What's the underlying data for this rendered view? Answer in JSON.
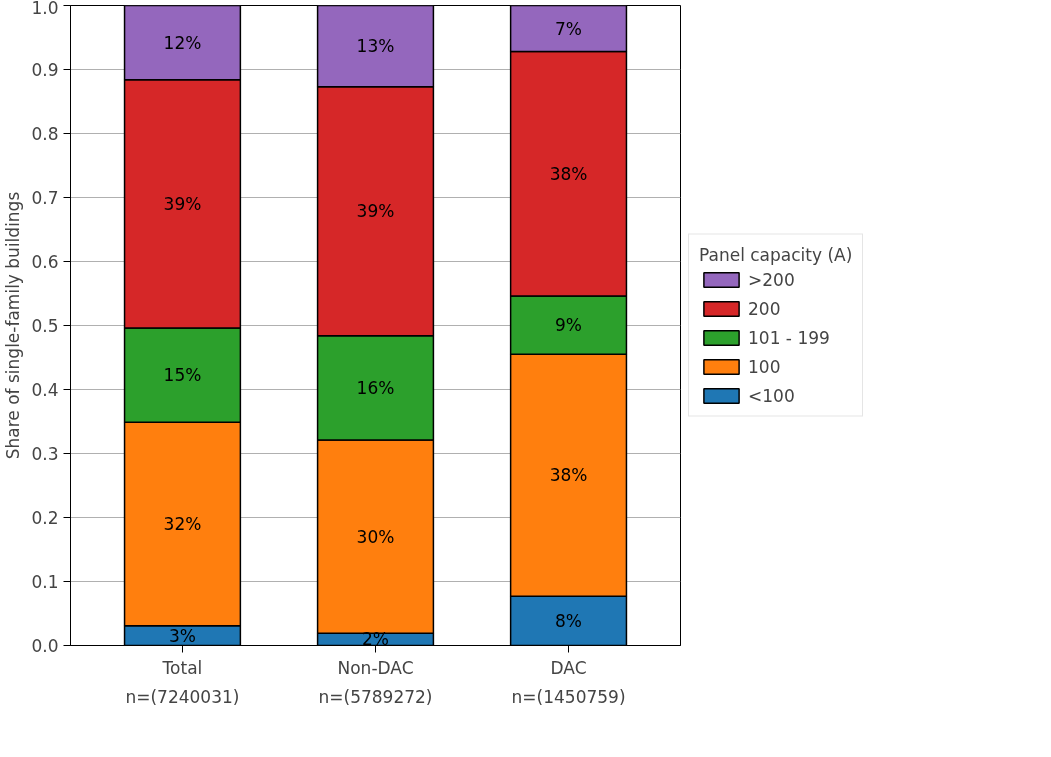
{
  "chart_data": {
    "type": "bar",
    "stacked": true,
    "ylabel": "Share of single-family buildings",
    "legend_title": "Panel capacity (A)",
    "legend": "right",
    "grid": "y",
    "categories": [
      "Total\nn=(7240031)",
      "Non-DAC\nn=(5789272)",
      "DAC\nn=(1450759)"
    ],
    "ylim": [
      0,
      1
    ],
    "yticks": [
      {
        "value": 0,
        "label": "0.0"
      },
      0.1,
      0.2,
      0.3,
      0.4,
      0.5,
      0.6,
      0.7,
      0.8,
      0.9,
      {
        "value": 1,
        "label": "1.0"
      }
    ],
    "series": [
      {
        "name": "<100",
        "color": "#1f77b4",
        "values": [
          0.031,
          0.019,
          0.077
        ],
        "value_labels": [
          "3%",
          "2%",
          "8%"
        ]
      },
      {
        "name": "100",
        "color": "#ff7f0e",
        "values": [
          0.318,
          0.302,
          0.378
        ],
        "value_labels": [
          "32%",
          "30%",
          "38%"
        ]
      },
      {
        "name": "101 - 199",
        "color": "#2ca02c",
        "values": [
          0.147,
          0.163,
          0.091
        ],
        "value_labels": [
          "15%",
          "16%",
          "9%"
        ]
      },
      {
        "name": "200",
        "color": "#d62728",
        "values": [
          0.388,
          0.389,
          0.382
        ],
        "value_labels": [
          "39%",
          "39%",
          "38%"
        ]
      },
      {
        "name": ">200",
        "color": "#9467bd",
        "values": [
          0.116,
          0.127,
          0.072
        ],
        "value_labels": [
          "12%",
          "13%",
          "7%"
        ]
      }
    ]
  }
}
